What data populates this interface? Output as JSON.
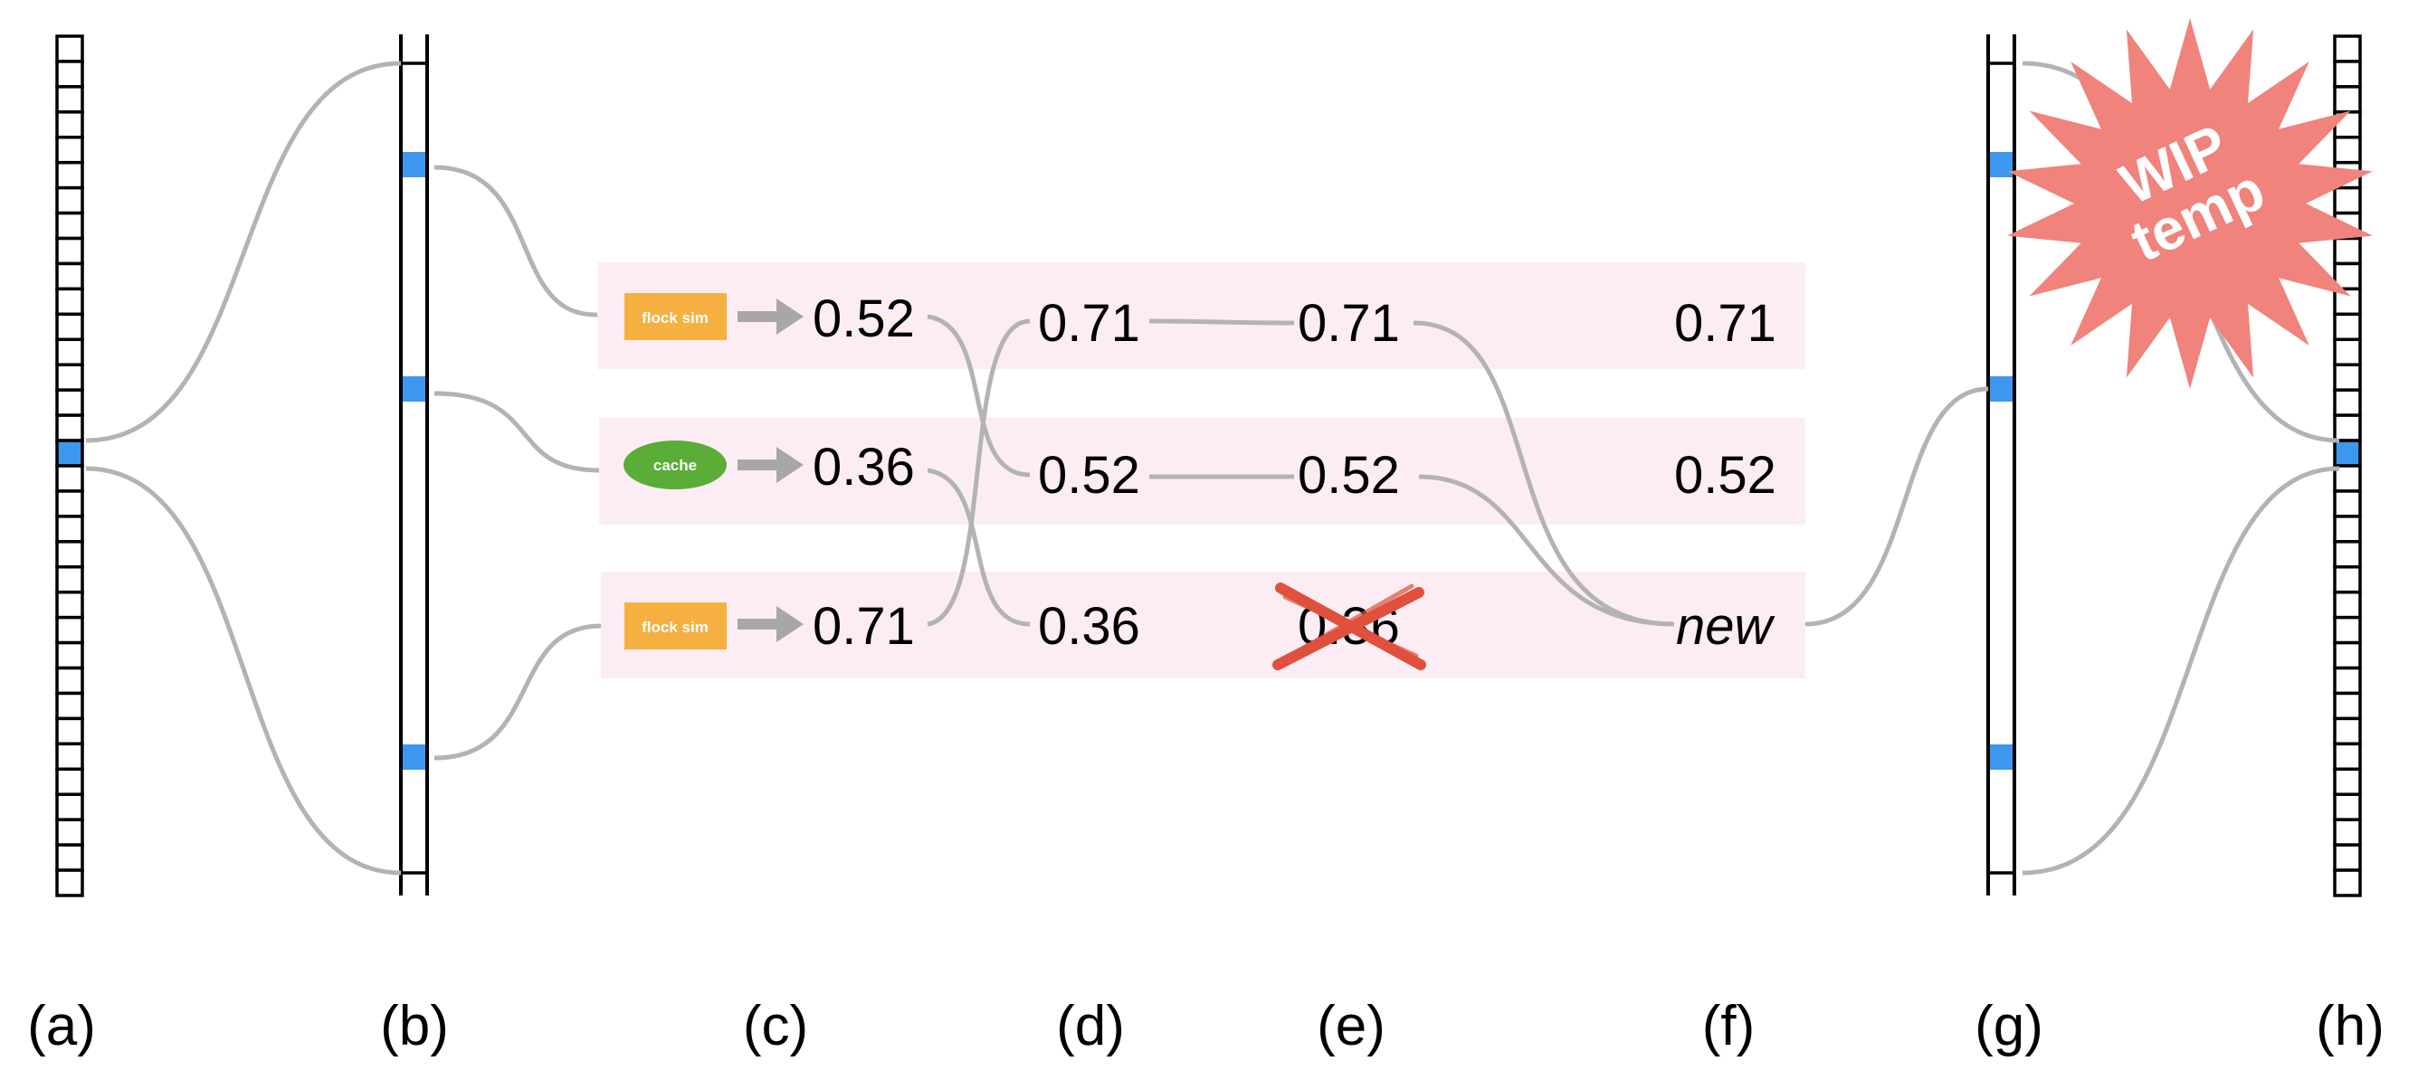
{
  "colors": {
    "slot_highlight": "#3d97ee",
    "row_band": "#fcedf4",
    "curve": "#b3b3b3",
    "chip_flock": "#f5b041",
    "chip_cache": "#5aad37",
    "arrow": "#a9a6aa",
    "cross": "#e0503c",
    "starburst": "#f0837b"
  },
  "chips": {
    "flock1": "flock sim",
    "cache": "cache",
    "flock2": "flock sim"
  },
  "values": {
    "c": [
      "0.52",
      "0.36",
      "0.71"
    ],
    "d": [
      "0.71",
      "0.52",
      "0.36"
    ],
    "e": [
      "0.71",
      "0.52",
      "0.36"
    ],
    "f": [
      "0.71",
      "0.52",
      "new"
    ]
  },
  "stamp": {
    "line1": "WIP",
    "line2": "temp"
  },
  "labels": [
    "(a)",
    "(b)",
    "(c)",
    "(d)",
    "(e)",
    "(f)",
    "(g)",
    "(h)"
  ]
}
